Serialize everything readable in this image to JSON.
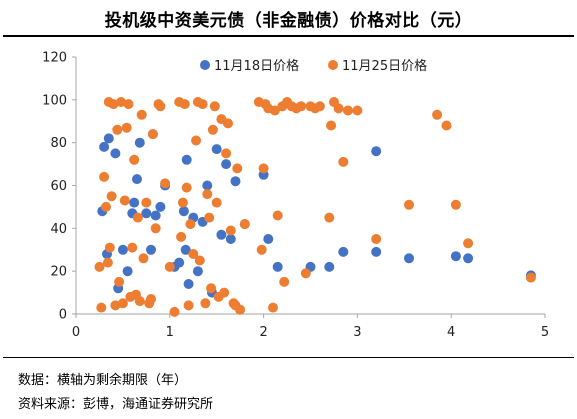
{
  "title": "投机级中资美元债（非金融债）价格对比（元）",
  "notes": {
    "line1": "数据：横轴为剩余期限（年）",
    "line2": "资料来源：彭博，海通证券研究所"
  },
  "chart_data": {
    "type": "scatter",
    "xlim": [
      0,
      5
    ],
    "ylim": [
      0,
      120
    ],
    "xticks": [
      "0",
      "1",
      "2",
      "3",
      "4",
      "5"
    ],
    "yticks": [
      "0",
      "20",
      "40",
      "60",
      "80",
      "100",
      "120"
    ],
    "grid": false,
    "legend": "top",
    "series": [
      {
        "name": "11月18日价格",
        "color": "#4472C4",
        "points": [
          [
            0.28,
            48
          ],
          [
            0.3,
            78
          ],
          [
            0.33,
            28
          ],
          [
            0.35,
            82
          ],
          [
            0.42,
            75
          ],
          [
            0.45,
            12
          ],
          [
            0.5,
            30
          ],
          [
            0.55,
            20
          ],
          [
            0.6,
            47
          ],
          [
            0.62,
            52
          ],
          [
            0.65,
            63
          ],
          [
            0.68,
            80
          ],
          [
            0.75,
            47
          ],
          [
            0.8,
            30
          ],
          [
            0.82,
            84
          ],
          [
            0.85,
            46
          ],
          [
            0.9,
            50
          ],
          [
            0.95,
            60
          ],
          [
            1.05,
            22
          ],
          [
            1.1,
            24
          ],
          [
            1.15,
            48
          ],
          [
            1.17,
            30
          ],
          [
            1.18,
            72
          ],
          [
            1.2,
            14
          ],
          [
            1.25,
            45
          ],
          [
            1.3,
            20
          ],
          [
            1.35,
            43
          ],
          [
            1.4,
            60
          ],
          [
            1.45,
            10
          ],
          [
            1.5,
            77
          ],
          [
            1.55,
            37
          ],
          [
            1.6,
            70
          ],
          [
            1.65,
            35
          ],
          [
            1.7,
            62
          ],
          [
            1.8,
            42
          ],
          [
            2.0,
            65
          ],
          [
            2.05,
            35
          ],
          [
            2.15,
            22
          ],
          [
            2.5,
            22
          ],
          [
            2.7,
            22
          ],
          [
            2.85,
            29
          ],
          [
            3.2,
            76
          ],
          [
            3.2,
            29
          ],
          [
            3.55,
            26
          ],
          [
            4.05,
            27
          ],
          [
            4.18,
            26
          ],
          [
            4.85,
            18
          ]
        ]
      },
      {
        "name": "11月25日价格",
        "color": "#ED7D31",
        "points": [
          [
            0.25,
            22
          ],
          [
            0.27,
            3
          ],
          [
            0.3,
            64
          ],
          [
            0.32,
            50
          ],
          [
            0.34,
            24
          ],
          [
            0.35,
            99
          ],
          [
            0.36,
            31
          ],
          [
            0.38,
            55
          ],
          [
            0.4,
            98
          ],
          [
            0.42,
            4
          ],
          [
            0.44,
            86
          ],
          [
            0.46,
            15
          ],
          [
            0.48,
            99
          ],
          [
            0.5,
            5
          ],
          [
            0.52,
            53
          ],
          [
            0.54,
            87
          ],
          [
            0.56,
            98
          ],
          [
            0.58,
            8
          ],
          [
            0.6,
            31
          ],
          [
            0.62,
            72
          ],
          [
            0.64,
            9
          ],
          [
            0.66,
            45
          ],
          [
            0.68,
            6
          ],
          [
            0.7,
            93
          ],
          [
            0.72,
            26
          ],
          [
            0.75,
            52
          ],
          [
            0.78,
            5
          ],
          [
            0.8,
            7
          ],
          [
            0.82,
            84
          ],
          [
            0.85,
            40
          ],
          [
            0.88,
            98
          ],
          [
            0.9,
            97
          ],
          [
            0.95,
            61
          ],
          [
            1.0,
            22
          ],
          [
            1.05,
            1
          ],
          [
            1.1,
            99
          ],
          [
            1.12,
            36
          ],
          [
            1.14,
            52
          ],
          [
            1.16,
            98
          ],
          [
            1.18,
            59
          ],
          [
            1.2,
            4
          ],
          [
            1.22,
            42
          ],
          [
            1.25,
            28
          ],
          [
            1.28,
            81
          ],
          [
            1.3,
            99
          ],
          [
            1.32,
            25
          ],
          [
            1.35,
            98
          ],
          [
            1.38,
            5
          ],
          [
            1.4,
            56
          ],
          [
            1.42,
            45
          ],
          [
            1.44,
            12
          ],
          [
            1.46,
            86
          ],
          [
            1.48,
            97
          ],
          [
            1.5,
            52
          ],
          [
            1.52,
            8
          ],
          [
            1.55,
            91
          ],
          [
            1.58,
            10
          ],
          [
            1.6,
            75
          ],
          [
            1.62,
            89
          ],
          [
            1.65,
            39
          ],
          [
            1.68,
            5
          ],
          [
            1.7,
            4
          ],
          [
            1.72,
            68
          ],
          [
            1.75,
            2
          ],
          [
            1.8,
            42
          ],
          [
            1.95,
            99
          ],
          [
            1.98,
            30
          ],
          [
            2.0,
            68
          ],
          [
            2.02,
            98
          ],
          [
            2.05,
            96
          ],
          [
            2.1,
            3
          ],
          [
            2.12,
            95
          ],
          [
            2.15,
            46
          ],
          [
            2.2,
            97
          ],
          [
            2.22,
            15
          ],
          [
            2.25,
            99
          ],
          [
            2.3,
            97
          ],
          [
            2.35,
            96
          ],
          [
            2.4,
            97
          ],
          [
            2.45,
            19
          ],
          [
            2.5,
            97
          ],
          [
            2.55,
            96
          ],
          [
            2.6,
            97
          ],
          [
            2.7,
            45
          ],
          [
            2.72,
            88
          ],
          [
            2.75,
            99
          ],
          [
            2.8,
            96
          ],
          [
            2.85,
            71
          ],
          [
            2.9,
            95
          ],
          [
            3.0,
            95
          ],
          [
            3.2,
            35
          ],
          [
            3.55,
            51
          ],
          [
            3.85,
            93
          ],
          [
            3.95,
            88
          ],
          [
            4.05,
            51
          ],
          [
            4.18,
            33
          ],
          [
            4.85,
            17
          ]
        ]
      }
    ]
  }
}
